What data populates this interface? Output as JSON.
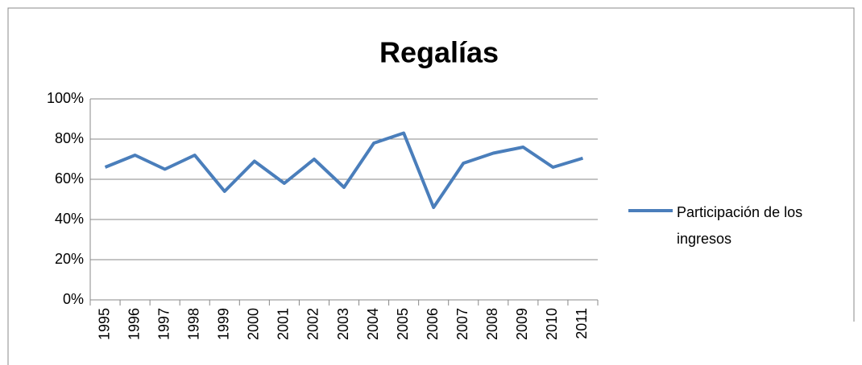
{
  "chart_data": {
    "type": "line",
    "title": "Regalías",
    "categories": [
      "1995",
      "1996",
      "1997",
      "1998",
      "1999",
      "2000",
      "2001",
      "2002",
      "2003",
      "2004",
      "2005",
      "2006",
      "2007",
      "2008",
      "2009",
      "2010",
      "2011"
    ],
    "series": [
      {
        "name": "Participación de los ingresos",
        "color": "#4a7ebb",
        "values": [
          66,
          72,
          65,
          72,
          54,
          69,
          58,
          70,
          56,
          78,
          83,
          46,
          68,
          73,
          76,
          66,
          70.5
        ]
      }
    ],
    "ylim": [
      0,
      100
    ],
    "yticks": [
      {
        "value": 0,
        "label": "0%"
      },
      {
        "value": 20,
        "label": "20%"
      },
      {
        "value": 40,
        "label": "40%"
      },
      {
        "value": 60,
        "label": "60%"
      },
      {
        "value": 80,
        "label": "80%"
      },
      {
        "value": 100,
        "label": "100%"
      }
    ],
    "grid": true,
    "legend": "right"
  }
}
